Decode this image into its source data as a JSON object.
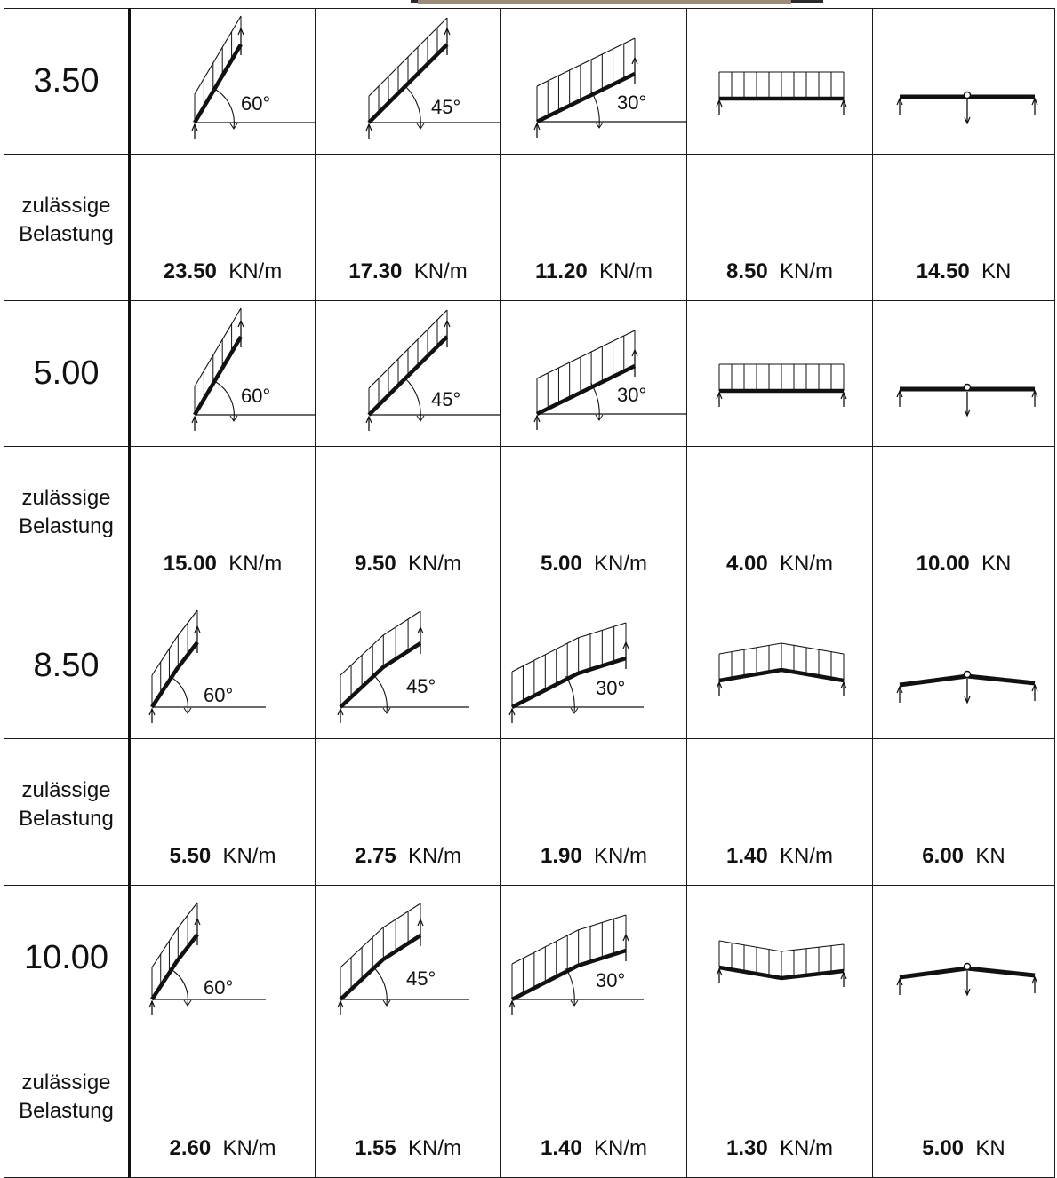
{
  "label_line1": "zulässige",
  "label_line2": "Belastung",
  "rows": [
    {
      "span": "3.50",
      "angles": [
        "60°",
        "45°",
        "30°"
      ],
      "loads": [
        {
          "value": "23.50",
          "unit": "KN/m"
        },
        {
          "value": "17.30",
          "unit": "KN/m"
        },
        {
          "value": "11.20",
          "unit": "KN/m"
        },
        {
          "value": "8.50",
          "unit": "KN/m"
        },
        {
          "value": "14.50",
          "unit": "KN"
        }
      ]
    },
    {
      "span": "5.00",
      "angles": [
        "60°",
        "45°",
        "30°"
      ],
      "loads": [
        {
          "value": "15.00",
          "unit": "KN/m"
        },
        {
          "value": "9.50",
          "unit": "KN/m"
        },
        {
          "value": "5.00",
          "unit": "KN/m"
        },
        {
          "value": "4.00",
          "unit": "KN/m"
        },
        {
          "value": "10.00",
          "unit": "KN"
        }
      ]
    },
    {
      "span": "8.50",
      "angles": [
        "60°",
        "45°",
        "30°"
      ],
      "loads": [
        {
          "value": "5.50",
          "unit": "KN/m"
        },
        {
          "value": "2.75",
          "unit": "KN/m"
        },
        {
          "value": "1.90",
          "unit": "KN/m"
        },
        {
          "value": "1.40",
          "unit": "KN/m"
        },
        {
          "value": "6.00",
          "unit": "KN"
        }
      ]
    },
    {
      "span": "10.00",
      "angles": [
        "60°",
        "45°",
        "30°"
      ],
      "loads": [
        {
          "value": "2.60",
          "unit": "KN/m"
        },
        {
          "value": "1.55",
          "unit": "KN/m"
        },
        {
          "value": "1.40",
          "unit": "KN/m"
        },
        {
          "value": "1.30",
          "unit": "KN/m"
        },
        {
          "value": "5.00",
          "unit": "KN"
        }
      ]
    }
  ]
}
